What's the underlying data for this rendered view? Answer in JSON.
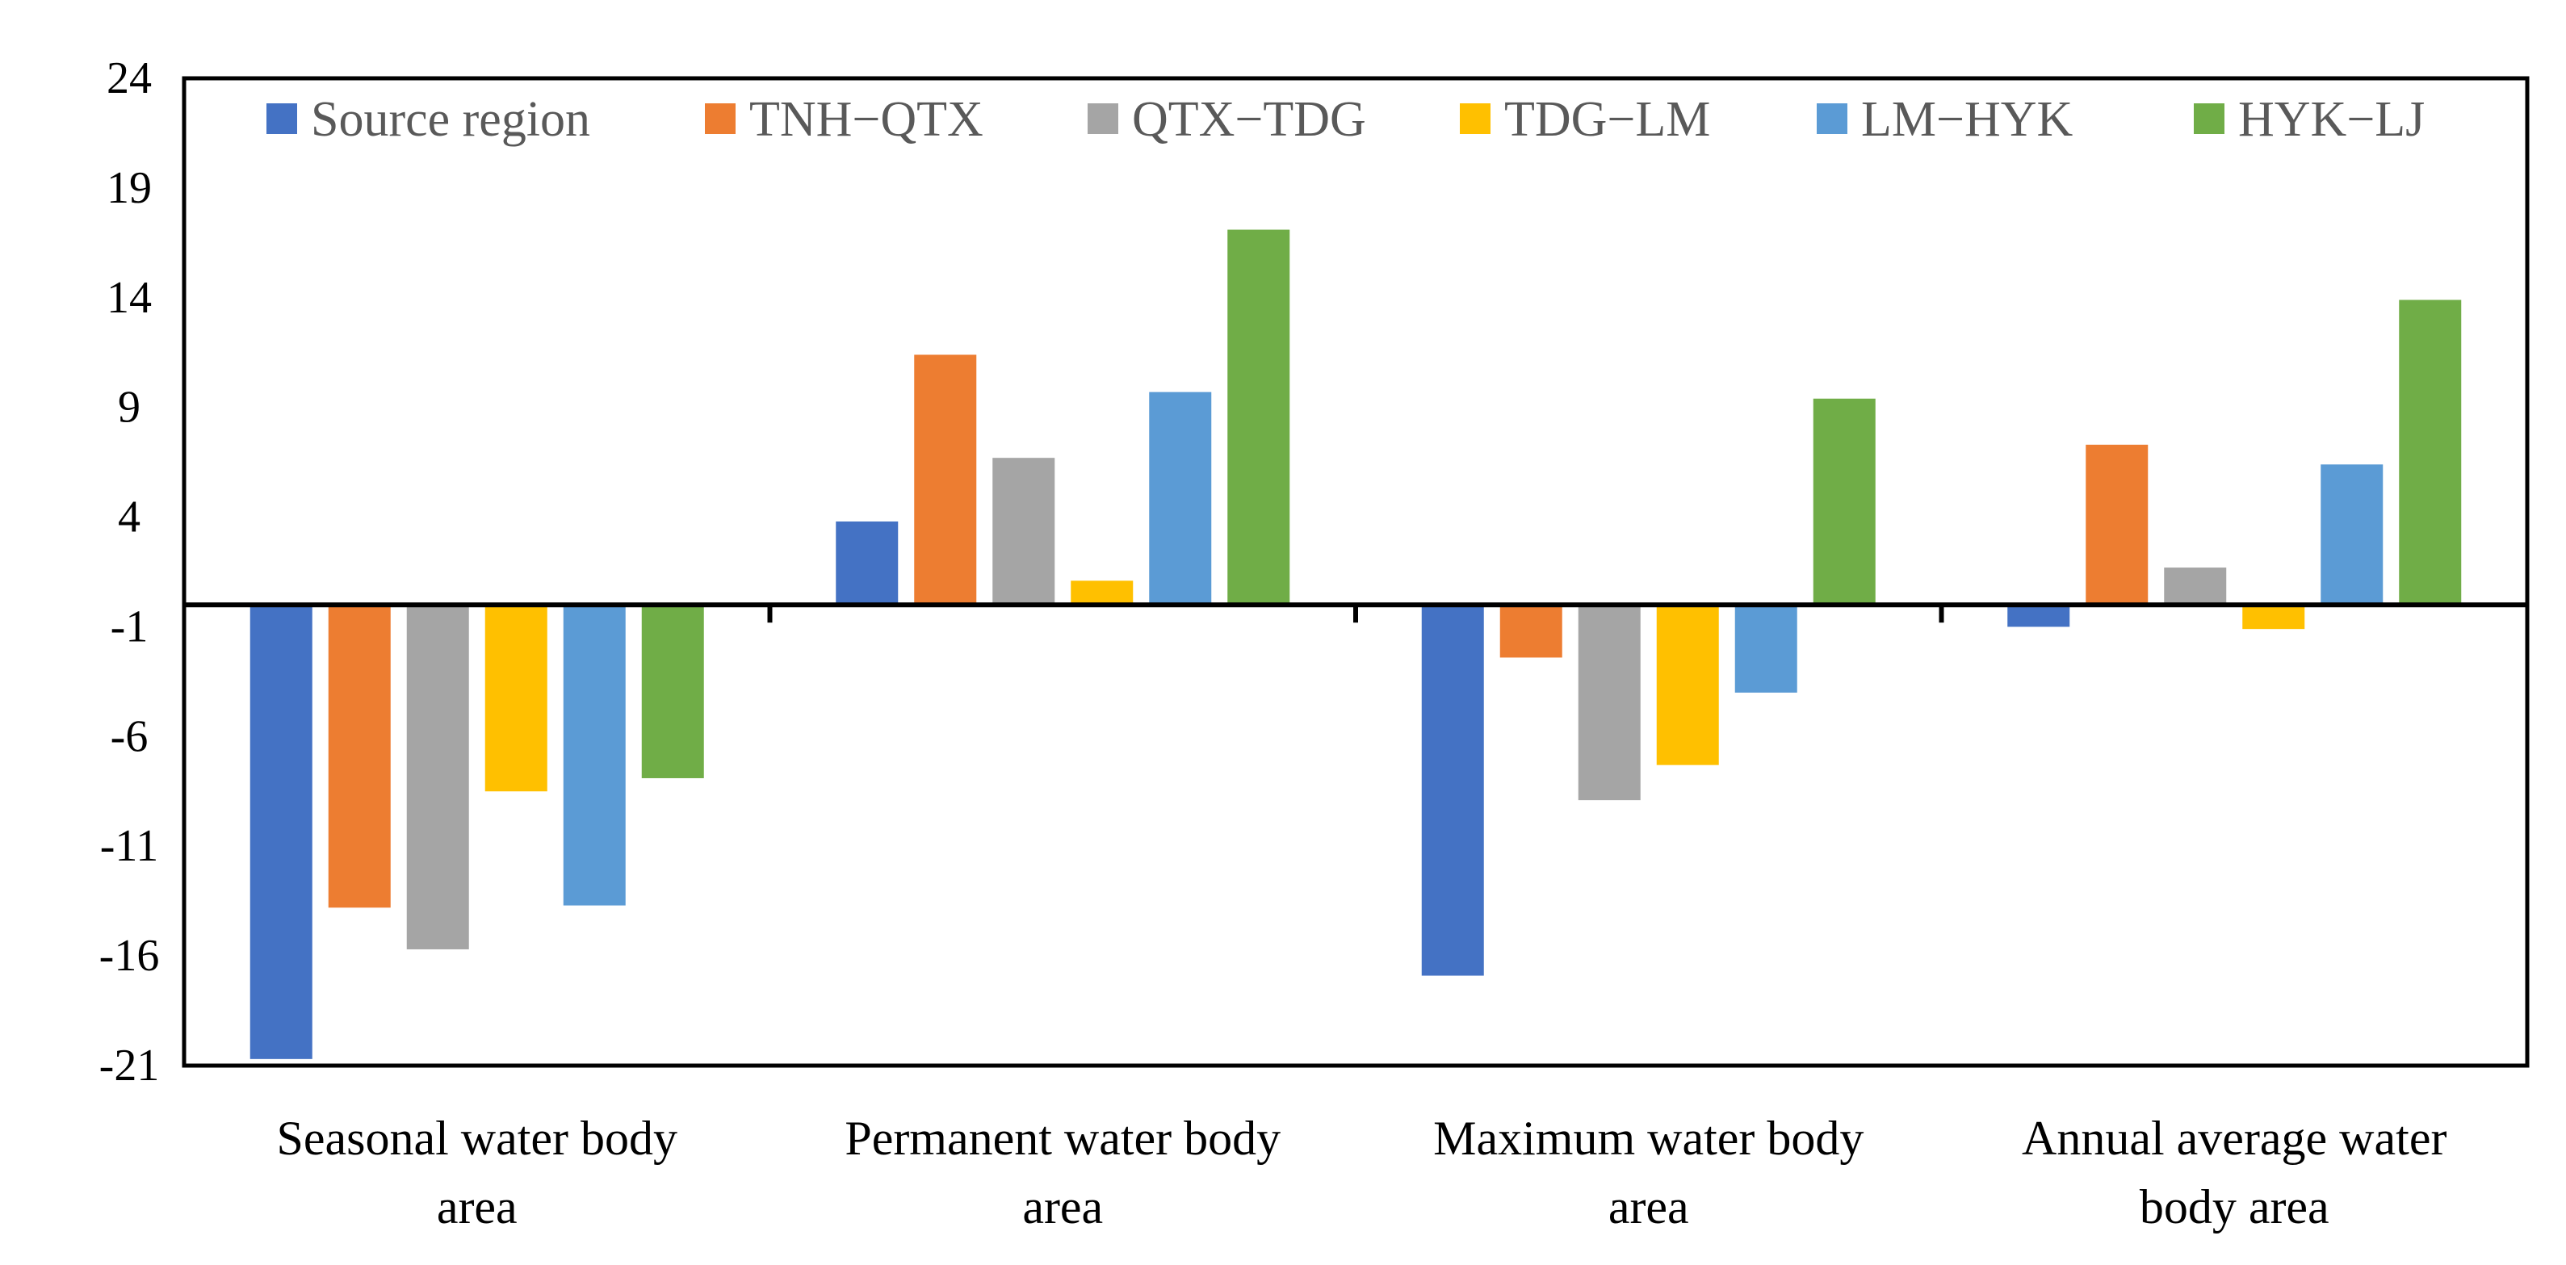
{
  "chart_data": {
    "type": "bar",
    "title": "",
    "xlabel": "",
    "ylabel": "",
    "ylim": [
      -21,
      24
    ],
    "yticks": [
      24,
      19,
      14,
      9,
      4,
      -1,
      -6,
      -11,
      -16,
      -21
    ],
    "yticklabels": [
      "24",
      "19",
      "14",
      "9",
      "4",
      "-1",
      "-6",
      "-11",
      "-16",
      "-21"
    ],
    "grid": false,
    "legend_position": "top",
    "categories": [
      [
        "Seasonal water body",
        "area"
      ],
      [
        "Permanent water body",
        "area"
      ],
      [
        "Maximum water body",
        "area"
      ],
      [
        "Annual average water",
        "body area"
      ]
    ],
    "series": [
      {
        "name": "Source region",
        "color": "#4472C4",
        "values": [
          -20.7,
          3.8,
          -16.9,
          -1.0
        ]
      },
      {
        "name": "TNH−QTX",
        "color": "#ED7D31",
        "values": [
          -13.8,
          11.4,
          -2.4,
          7.3
        ]
      },
      {
        "name": "QTX−TDG",
        "color": "#A5A5A5",
        "values": [
          -15.7,
          6.7,
          -8.9,
          1.7
        ]
      },
      {
        "name": "TDG−LM",
        "color": "#FFC000",
        "values": [
          -8.5,
          1.1,
          -7.3,
          -1.1
        ]
      },
      {
        "name": "LM−HYK",
        "color": "#5B9BD5",
        "values": [
          -13.7,
          9.7,
          -4.0,
          6.4
        ]
      },
      {
        "name": "HYK−LJ",
        "color": "#70AD47",
        "values": [
          -7.9,
          17.1,
          9.4,
          13.9
        ]
      }
    ]
  }
}
